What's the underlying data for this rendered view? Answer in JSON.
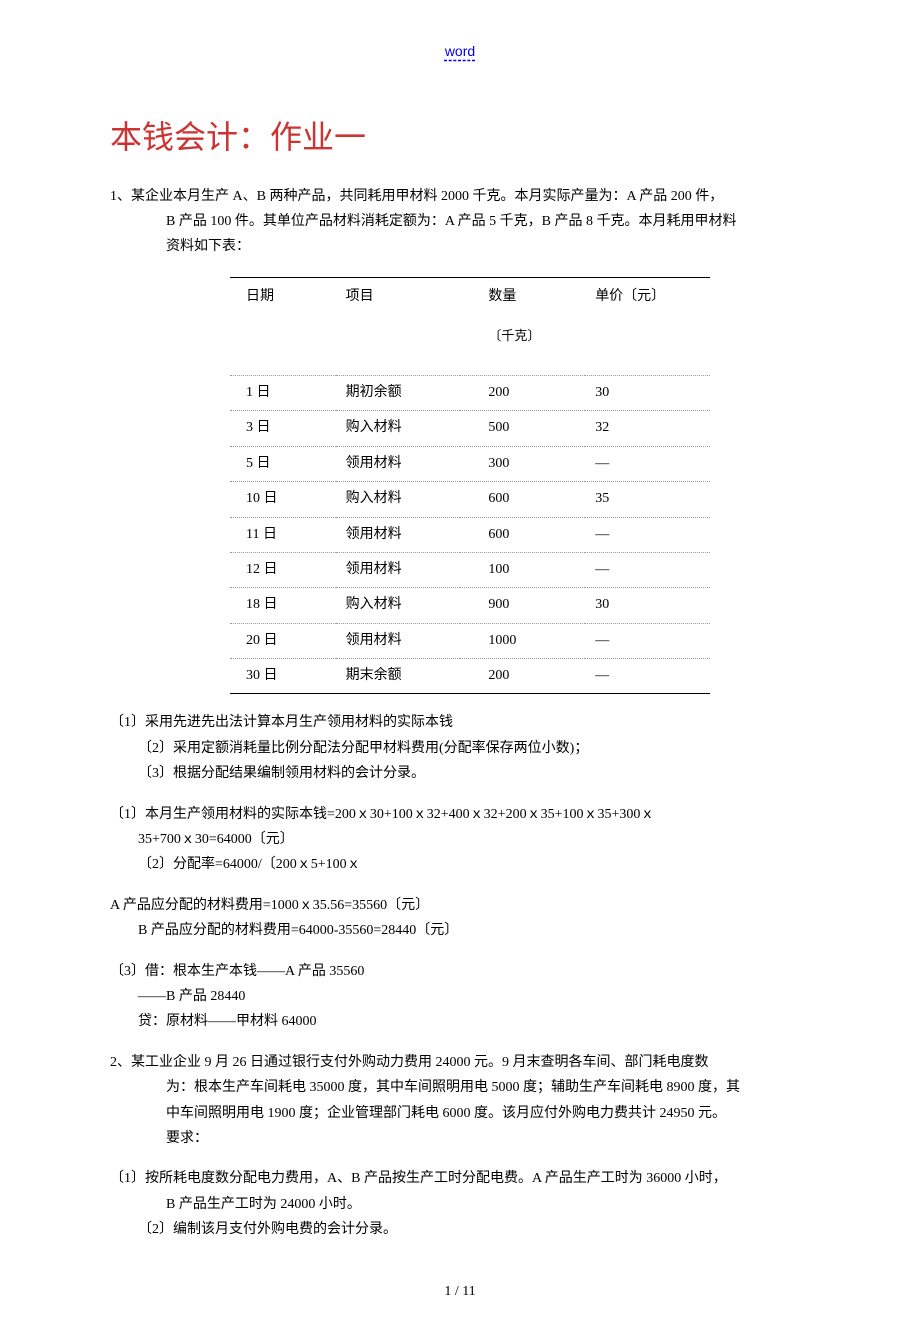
{
  "header_word": "word",
  "title": "本钱会计：作业一",
  "q1": {
    "intro_l1": "1、某企业本月生产 A、B 两种产品，共同耗用甲材料 2000 千克。本月实际产量为：A 产品 200 件，",
    "intro_l2": "B 产品 100 件。其单位产品材料消耗定额为：A 产品 5 千克，B 产品 8 千克。本月耗用甲材料",
    "intro_l3": "资料如下表：",
    "table": {
      "columns": [
        "日期",
        "项目",
        "数量",
        "单价〔元〕"
      ],
      "subheader": "〔千克〕",
      "rows": [
        [
          "1 日",
          "期初余额",
          "200",
          "30"
        ],
        [
          "3 日",
          "购入材料",
          "500",
          "32"
        ],
        [
          "5 日",
          "领用材料",
          "300",
          "—"
        ],
        [
          "10 日",
          "购入材料",
          "600",
          "35"
        ],
        [
          "11 日",
          "领用材料",
          "600",
          "—"
        ],
        [
          "12 日",
          "领用材料",
          "100",
          "—"
        ],
        [
          "18 日",
          "购入材料",
          "900",
          "30"
        ],
        [
          "20 日",
          "领用材料",
          "1000",
          "—"
        ],
        [
          "30 日",
          "期末余额",
          "200",
          "—"
        ]
      ]
    },
    "req1": "〔1〕采用先进先出法计算本月生产领用材料的实际本钱",
    "req2": "〔2〕采用定额消耗量比例分配法分配甲材料费用(分配率保存两位小数)；",
    "req3": "〔3〕根据分配结果编制领用材料的会计分录。",
    "ans1_l1": "〔1〕本月生产领用材料的实际本钱=200ｘ30+100ｘ32+400ｘ32+200ｘ35+100ｘ35+300ｘ",
    "ans1_l2": "35+700ｘ30=64000〔元〕",
    "ans2": "〔2〕分配率=64000/〔200ｘ5+100ｘ",
    "allocA": "A 产品应分配的材料费用=1000ｘ35.56=35560〔元〕",
    "allocB": "B 产品应分配的材料费用=64000-35560=28440〔元〕",
    "entry_dr": "〔3〕借：根本生产本钱——A 产品  35560",
    "entry_dr2": "——B 产品  28440",
    "entry_cr": "贷：原材料——甲材料  64000"
  },
  "q2": {
    "intro_l1": "2、某工业企业 9 月 26 日通过银行支付外购动力费用 24000 元。9 月末查明各车间、部门耗电度数",
    "intro_l2": "为：根本生产车间耗电 35000 度，其中车间照明用电 5000 度；辅助生产车间耗电 8900 度，其",
    "intro_l3": "中车间照明用电 1900 度；企业管理部门耗电 6000 度。该月应付外购电力费共计 24950 元。",
    "intro_l4": "要求：",
    "req1_l1": "〔1〕按所耗电度数分配电力费用，A、B 产品按生产工时分配电费。A 产品生产工时为 36000 小时，",
    "req1_l2": "B 产品生产工时为 24000 小时。",
    "req2": "〔2〕编制该月支付外购电费的会计分录。"
  },
  "page_footer": "1 / 11"
}
